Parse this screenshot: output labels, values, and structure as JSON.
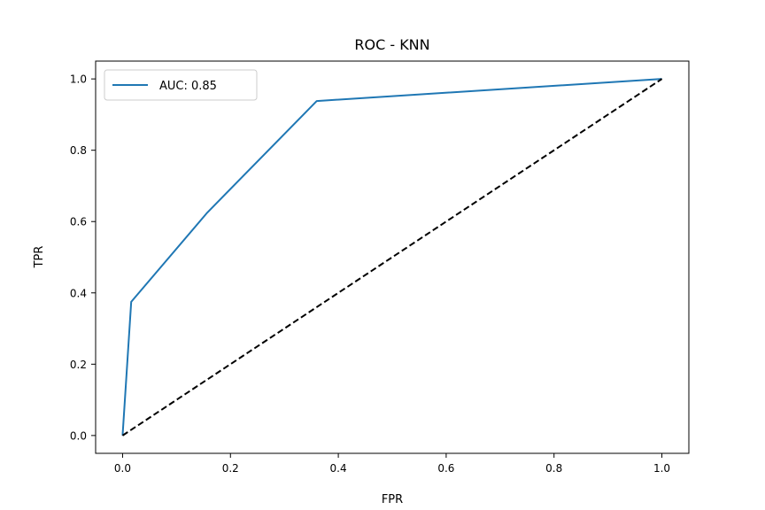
{
  "chart_data": {
    "type": "line",
    "title": "ROC - KNN",
    "xlabel": "FPR",
    "ylabel": "TPR",
    "xlim": [
      -0.05,
      1.05
    ],
    "ylim": [
      -0.05,
      1.05
    ],
    "xticks": [
      0.0,
      0.2,
      0.4,
      0.6,
      0.8,
      1.0
    ],
    "yticks": [
      0.0,
      0.2,
      0.4,
      0.6,
      0.8,
      1.0
    ],
    "xtick_labels": [
      "0.0",
      "0.2",
      "0.4",
      "0.6",
      "0.8",
      "1.0"
    ],
    "ytick_labels": [
      "0.0",
      "0.2",
      "0.4",
      "0.6",
      "0.8",
      "1.0"
    ],
    "grid": false,
    "legend_position": "top-left",
    "series": [
      {
        "name": "AUC: 0.85",
        "color": "#1f77b4",
        "style": "solid",
        "x": [
          0.0,
          0.016,
          0.157,
          0.36,
          1.0
        ],
        "y": [
          0.0,
          0.375,
          0.625,
          0.938,
          1.0
        ]
      },
      {
        "color": "#000000",
        "style": "dashed",
        "x": [
          0.0,
          1.0
        ],
        "y": [
          0.0,
          1.0
        ]
      }
    ]
  }
}
